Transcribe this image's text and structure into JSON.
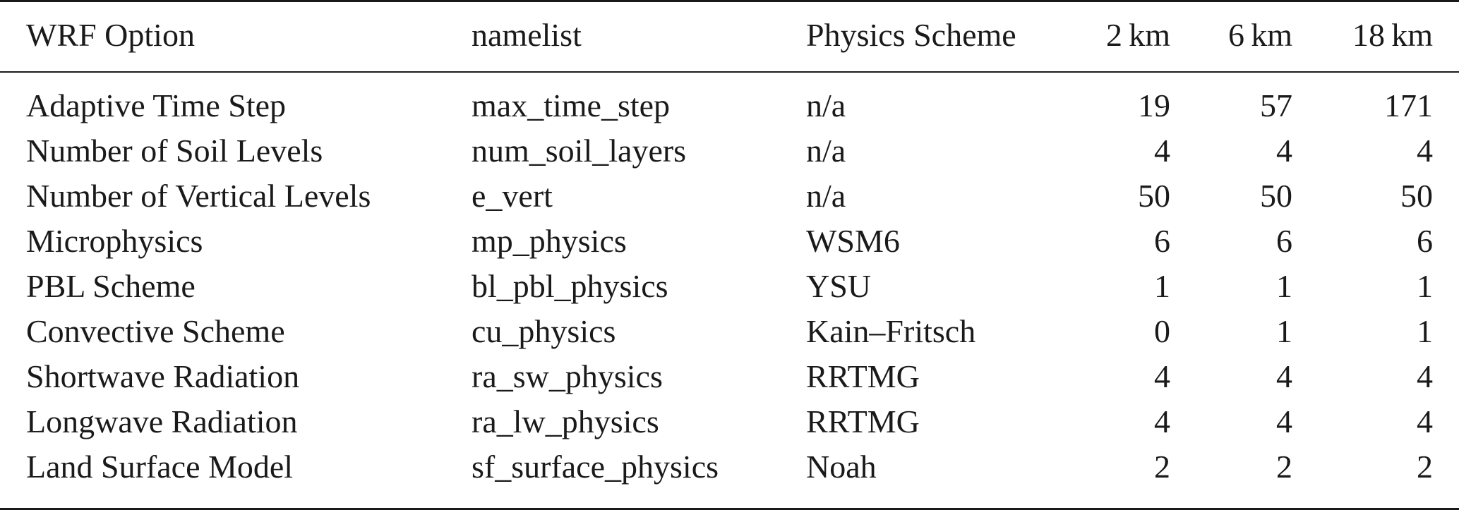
{
  "table": {
    "headers": [
      "WRF Option",
      "namelist",
      "Physics Scheme",
      "2 km",
      "6 km",
      "18 km"
    ],
    "rows": [
      [
        "Adaptive Time Step",
        "max_time_step",
        "n/a",
        "19",
        "57",
        "171"
      ],
      [
        "Number of Soil Levels",
        "num_soil_layers",
        "n/a",
        "4",
        "4",
        "4"
      ],
      [
        "Number of Vertical Levels",
        "e_vert",
        "n/a",
        "50",
        "50",
        "50"
      ],
      [
        "Microphysics",
        "mp_physics",
        "WSM6",
        "6",
        "6",
        "6"
      ],
      [
        "PBL Scheme",
        "bl_pbl_physics",
        "YSU",
        "1",
        "1",
        "1"
      ],
      [
        "Convective Scheme",
        "cu_physics",
        "Kain–Fritsch",
        "0",
        "1",
        "1"
      ],
      [
        "Shortwave Radiation",
        "ra_sw_physics",
        "RRTMG",
        "4",
        "4",
        "4"
      ],
      [
        "Longwave Radiation",
        "ra_lw_physics",
        "RRTMG",
        "4",
        "4",
        "4"
      ],
      [
        "Land Surface Model",
        "sf_surface_physics",
        "Noah",
        "2",
        "2",
        "2"
      ]
    ]
  }
}
